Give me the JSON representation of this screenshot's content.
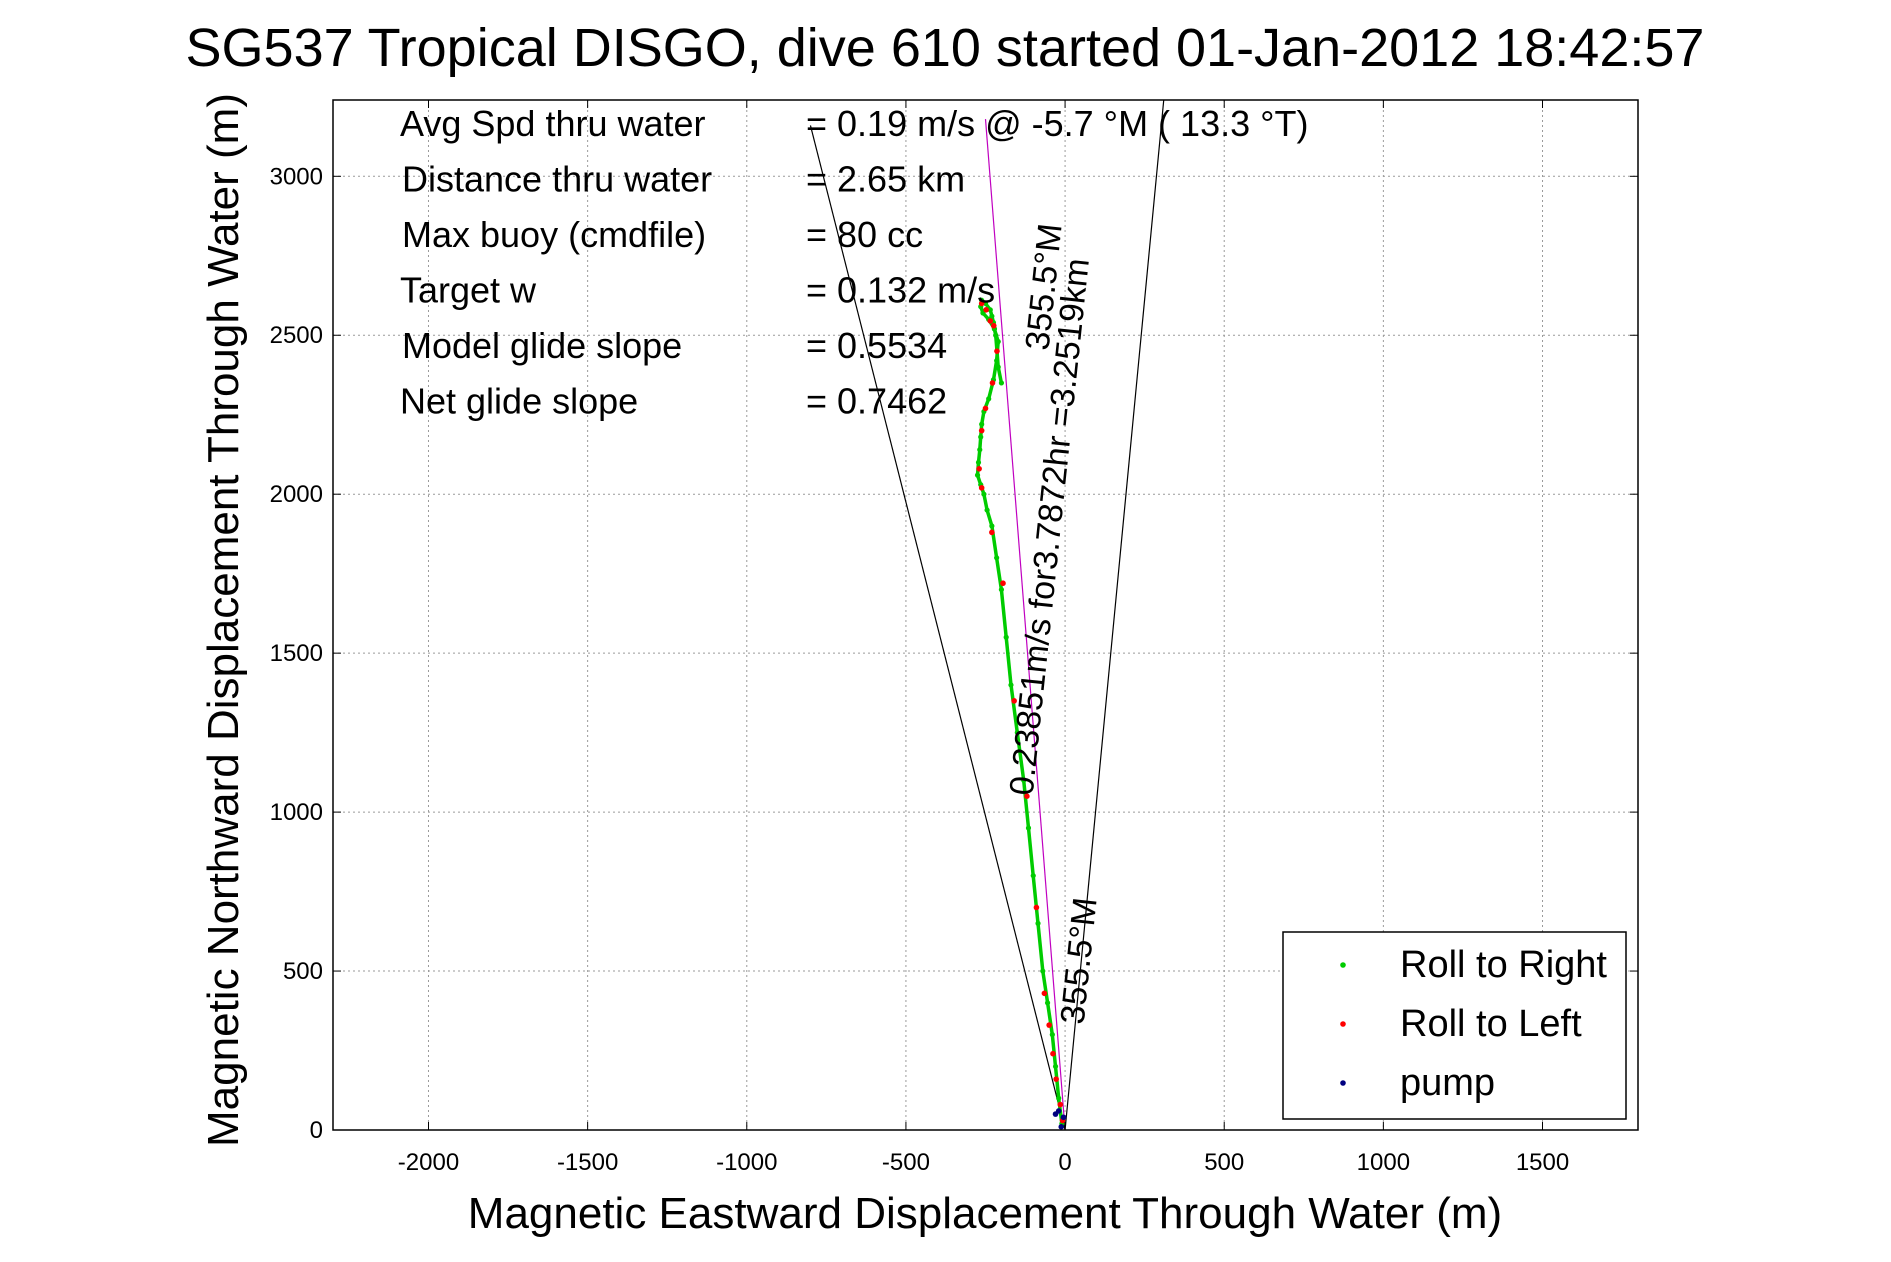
{
  "chart_data": {
    "type": "scatter",
    "title": "SG537 Tropical DISGO, dive 610 started 01-Jan-2012 18:42:57",
    "xlabel": "Magnetic Eastward Displacement Through Water (m)",
    "ylabel": "Magnetic Northward Displacement Through Water (m)",
    "xlim": [
      -2300,
      1800
    ],
    "ylim": [
      0,
      3240
    ],
    "x_ticks": [
      -2000,
      -1500,
      -1000,
      -500,
      0,
      500,
      1000,
      1500
    ],
    "y_ticks": [
      0,
      500,
      1000,
      1500,
      2000,
      2500,
      3000
    ],
    "x_tick_labels": [
      "-2000",
      "-1500",
      "-1000",
      "-500",
      "0",
      "500",
      "1000",
      "1500"
    ],
    "y_tick_labels": [
      "0",
      "500",
      "1000",
      "1500",
      "2000",
      "2500",
      "3000"
    ],
    "grid": true,
    "legend_position": "bottom-right",
    "stats": [
      {
        "label": "Avg Spd thru water",
        "value": "=  0.19 m/s @  -5.7 °M ( 13.3 °T)"
      },
      {
        "label": "Distance thru water",
        "value": "=  2.65 km"
      },
      {
        "label": "Max buoy (cmdfile)",
        "value": "= 80 cc"
      },
      {
        "label": "Target w",
        "value": "= 0.132 m/s"
      },
      {
        "label": "Model glide slope",
        "value": "= 0.5534"
      },
      {
        "label": "Net glide slope",
        "value": "= 0.7462"
      }
    ],
    "annotations": [
      {
        "text": "0.23851m/s for3.7872hr =3.2519km",
        "x": -140,
        "y": 1050
      },
      {
        "text": "355.5°M",
        "x": 20,
        "y": 330
      },
      {
        "text": "355.5°M",
        "x": -90,
        "y": 2450
      }
    ],
    "heading_lines": [
      {
        "name": "course",
        "x": [
          0,
          -250
        ],
        "y": [
          0,
          3180
        ],
        "color": "#c000c0"
      },
      {
        "name": "west-bound",
        "x": [
          0,
          -800
        ],
        "y": [
          0,
          3160
        ],
        "color": "#000000"
      },
      {
        "name": "east-bound",
        "x": [
          0,
          310
        ],
        "y": [
          0,
          3240
        ],
        "color": "#000000"
      }
    ],
    "series": [
      {
        "name": "Roll to Right",
        "color": "#00cc00",
        "x": [
          -10,
          -20,
          -30,
          -40,
          -55,
          -70,
          -85,
          -100,
          -115,
          -130,
          -150,
          -170,
          -185,
          -200,
          -215,
          -230,
          -245,
          -255,
          -265,
          -275,
          -272,
          -268,
          -265,
          -262,
          -255,
          -240,
          -225,
          -215,
          -210,
          -222,
          -240,
          -258,
          -265,
          -262,
          -250,
          -235,
          -230,
          -225,
          -222,
          -218,
          -214,
          -210,
          -200
        ],
        "y": [
          20,
          100,
          200,
          300,
          400,
          500,
          650,
          800,
          950,
          1100,
          1250,
          1400,
          1550,
          1700,
          1800,
          1900,
          1950,
          2000,
          2030,
          2060,
          2100,
          2140,
          2180,
          2220,
          2260,
          2300,
          2360,
          2420,
          2480,
          2520,
          2550,
          2570,
          2590,
          2610,
          2600,
          2580,
          2560,
          2540,
          2520,
          2500,
          2450,
          2400,
          2350
        ]
      },
      {
        "name": "Roll to Left",
        "color": "#ff0000",
        "x": [
          -8,
          -15,
          -28,
          -38,
          -50,
          -65,
          -90,
          -120,
          -160,
          -195,
          -230,
          -262,
          -270,
          -262,
          -250,
          -228,
          -214,
          -235,
          -262,
          -248,
          -224
        ],
        "y": [
          30,
          80,
          160,
          240,
          330,
          430,
          700,
          1050,
          1350,
          1720,
          1880,
          2020,
          2080,
          2200,
          2270,
          2350,
          2450,
          2545,
          2600,
          2580,
          2530
        ]
      },
      {
        "name": "pump",
        "color": "#000080",
        "x": [
          -12,
          -5,
          -20,
          -30
        ],
        "y": [
          10,
          40,
          60,
          50
        ]
      }
    ]
  }
}
